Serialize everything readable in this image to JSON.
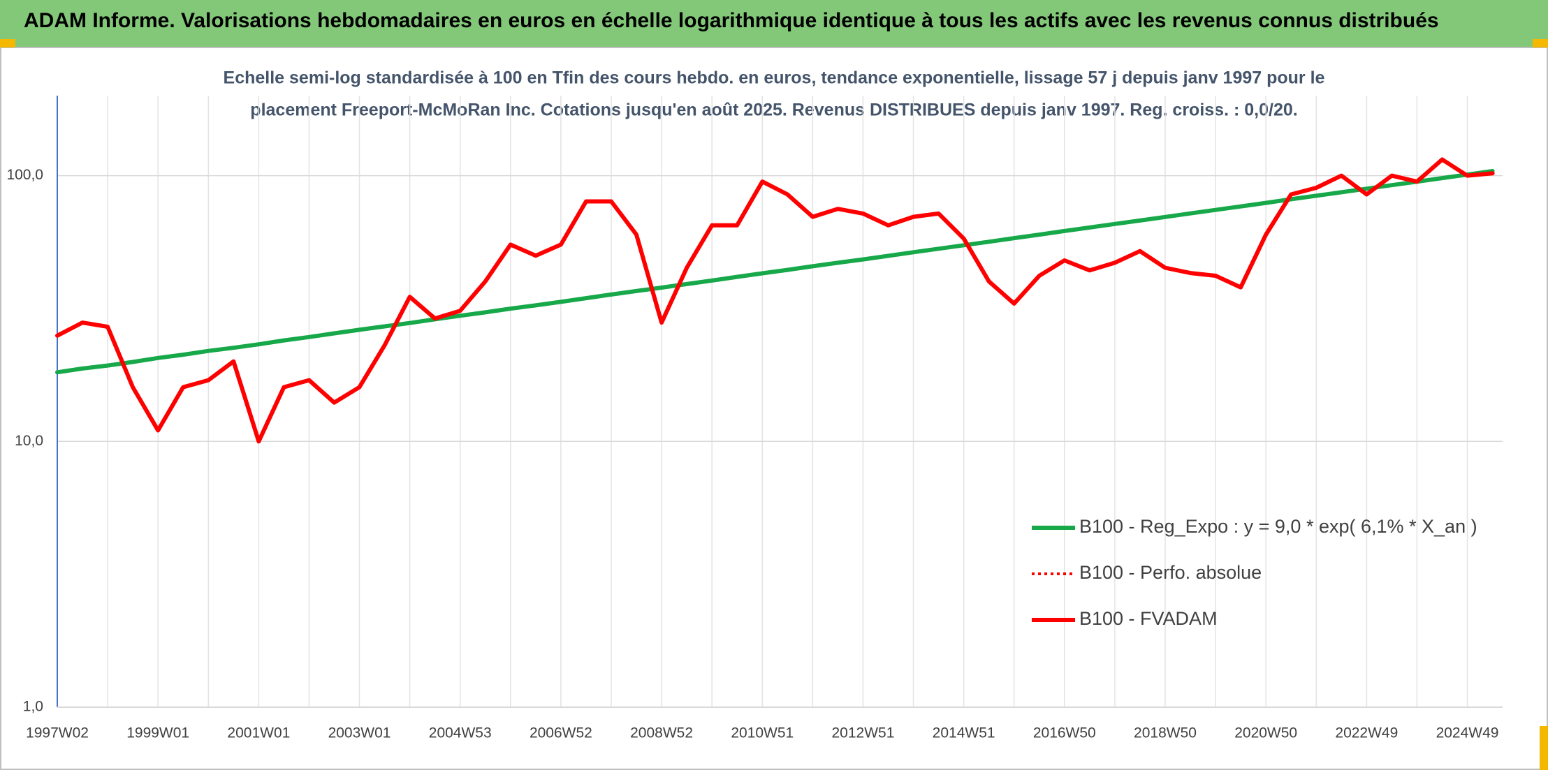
{
  "chart_data": {
    "type": "line",
    "title": "ADAM Informe. Valorisations hebdomadaires en euros en échelle logarithmique identique à tous les actifs avec les revenus connus distribués",
    "subtitle": [
      "Echelle semi-log standardisée à 100 en Tfin des cours hebdo. en euros, tendance exponentielle, lissage 57 j depuis janv 1997 pour le",
      "placement Freeport-McMoRan Inc. Cotations jusqu'en août 2025. Revenus DISTRIBUES depuis janv 1997. Reg. croiss. : 0,0/20."
    ],
    "categories": [
      "1997W02",
      null,
      null,
      null,
      "1999W01",
      null,
      null,
      null,
      "2001W01",
      null,
      null,
      null,
      "2003W01",
      null,
      null,
      null,
      "2004W53",
      null,
      null,
      null,
      "2006W52",
      null,
      null,
      null,
      "2008W52",
      null,
      null,
      null,
      "2010W51",
      null,
      null,
      null,
      "2012W51",
      null,
      null,
      null,
      "2014W51",
      null,
      null,
      null,
      "2016W50",
      null,
      null,
      null,
      "2018W50",
      null,
      null,
      null,
      "2020W50",
      null,
      null,
      null,
      "2022W49",
      null,
      null,
      null,
      "2024W49",
      null
    ],
    "yscale": "log",
    "ylim": [
      1,
      200
    ],
    "yticks": [
      {
        "value": 1,
        "label": "1,0"
      },
      {
        "value": 10,
        "label": "10,0"
      },
      {
        "value": 100,
        "label": "100,0"
      }
    ],
    "grid": true,
    "legend": "lower right",
    "series": [
      {
        "name": "B100 - Reg_Expo : y = 9,0 * exp( 6,1% *  X_an )",
        "color": "#17a84a",
        "style": "solid",
        "values": [
          18.2,
          18.8,
          19.3,
          19.9,
          20.6,
          21.2,
          21.9,
          22.5,
          23.2,
          24.0,
          24.7,
          25.5,
          26.3,
          27.1,
          27.9,
          28.8,
          29.7,
          30.6,
          31.6,
          32.5,
          33.5,
          34.6,
          35.7,
          36.8,
          37.9,
          39.1,
          40.3,
          41.6,
          42.9,
          44.2,
          45.6,
          47.0,
          48.4,
          49.9,
          51.5,
          53.1,
          54.7,
          56.4,
          58.2,
          60.0,
          61.9,
          63.8,
          65.8,
          67.8,
          69.9,
          72.1,
          74.3,
          76.6,
          79.0,
          81.5,
          84.0,
          86.6,
          89.3,
          92.1,
          94.9,
          97.9,
          100.9,
          104.1
        ]
      },
      {
        "name": "B100 - Perfo. absolue",
        "color": "#ff0000",
        "style": "dotted",
        "values": [
          25,
          28,
          27,
          16,
          11,
          16,
          17,
          20,
          10,
          16,
          17,
          14,
          16,
          23,
          35,
          29,
          31,
          40,
          55,
          50,
          55,
          80,
          80,
          60,
          28,
          45,
          65,
          65,
          95,
          85,
          70,
          75,
          72,
          65,
          70,
          72,
          58,
          40,
          33,
          42,
          48,
          44,
          47,
          52,
          45,
          43,
          42,
          38,
          60,
          85,
          90,
          100,
          85,
          100,
          95,
          115,
          100,
          102
        ]
      },
      {
        "name": "B100 - FVADAM",
        "color": "#ff0000",
        "style": "solid",
        "values": [
          25,
          28,
          27,
          16,
          11,
          16,
          17,
          20,
          10,
          16,
          17,
          14,
          16,
          23,
          35,
          29,
          31,
          40,
          55,
          50,
          55,
          80,
          80,
          60,
          28,
          45,
          65,
          65,
          95,
          85,
          70,
          75,
          72,
          65,
          70,
          72,
          58,
          40,
          33,
          42,
          48,
          44,
          47,
          52,
          45,
          43,
          42,
          38,
          60,
          85,
          90,
          100,
          85,
          100,
          95,
          115,
          100,
          102
        ]
      }
    ]
  }
}
